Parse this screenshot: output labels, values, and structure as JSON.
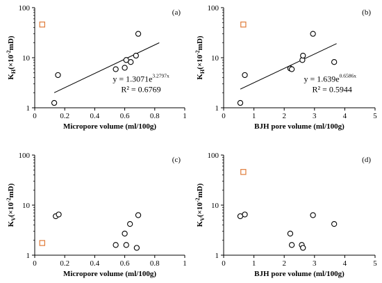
{
  "chart_data": [
    {
      "type": "scatter",
      "panel_label": "(a)",
      "xlabel": "Micropore volume (ml/100g)",
      "ylabel": "Kₕ(×10⁻²mD)",
      "ylabel_base": "K",
      "ylabel_sub": "H",
      "ylabel_rest": "(×10",
      "ylabel_sup": "-2",
      "ylabel_end": "mD)",
      "xlim": [
        0,
        1
      ],
      "xticks": [
        0,
        0.2,
        0.4,
        0.6,
        0.8,
        1
      ],
      "xtick_labels": [
        "0",
        "0.2",
        "0.4",
        "0.6",
        "0.8",
        "1"
      ],
      "ylim": [
        1,
        100
      ],
      "yscale": "log",
      "yticks": [
        1,
        10,
        100
      ],
      "ytick_labels": [
        "1",
        "10",
        "100"
      ],
      "series": [
        {
          "marker": "circle",
          "color": "#000000",
          "points": [
            [
              0.13,
              1.25
            ],
            [
              0.155,
              4.5
            ],
            [
              0.54,
              5.9
            ],
            [
              0.6,
              6.3
            ],
            [
              0.61,
              9.0
            ],
            [
              0.64,
              8.2
            ],
            [
              0.675,
              11.0
            ],
            [
              0.69,
              30.0
            ]
          ]
        },
        {
          "marker": "square",
          "color": "#e07b39",
          "points": [
            [
              0.05,
              46.0
            ]
          ]
        }
      ],
      "fit": {
        "a": 1.3071,
        "b": 3.2797,
        "x_range": [
          0.13,
          0.83
        ]
      },
      "equation": {
        "prefix": "y = 1.3071e",
        "exponent": "3.2797x",
        "r2": "R² = 0.6769"
      }
    },
    {
      "type": "scatter",
      "panel_label": "(b)",
      "xlabel": "BJH pore volume (ml/100g)",
      "ylabel_base": "K",
      "ylabel_sub": "H",
      "ylabel_rest": "(×10",
      "ylabel_sup": "-2",
      "ylabel_end": "mD)",
      "xlim": [
        0,
        5
      ],
      "xticks": [
        0,
        1,
        2,
        3,
        4,
        5
      ],
      "xtick_labels": [
        "0",
        "1",
        "2",
        "3",
        "4",
        "5"
      ],
      "ylim": [
        1,
        100
      ],
      "yscale": "log",
      "yticks": [
        1,
        10,
        100
      ],
      "ytick_labels": [
        "1",
        "10",
        "100"
      ],
      "series": [
        {
          "marker": "circle",
          "color": "#000000",
          "points": [
            [
              0.55,
              1.25
            ],
            [
              0.7,
              4.5
            ],
            [
              2.2,
              6.1
            ],
            [
              2.25,
              5.9
            ],
            [
              2.6,
              9.0
            ],
            [
              2.62,
              11.0
            ],
            [
              2.95,
              30.0
            ],
            [
              3.65,
              8.2
            ]
          ]
        },
        {
          "marker": "square",
          "color": "#e07b39",
          "points": [
            [
              0.65,
              46.0
            ]
          ]
        }
      ],
      "fit": {
        "a": 1.639,
        "b": 0.6586,
        "x_range": [
          0.55,
          3.73
        ]
      },
      "equation": {
        "prefix": "y = 1.639e",
        "exponent": "0.6586x",
        "r2": "R² = 0.5944"
      }
    },
    {
      "type": "scatter",
      "panel_label": "(c)",
      "xlabel": "Micropore volume (ml/100g)",
      "ylabel_base": "K",
      "ylabel_sub": "V",
      "ylabel_rest": "(×10",
      "ylabel_sup": "-2",
      "ylabel_end": "mD)",
      "xlim": [
        0,
        1
      ],
      "xticks": [
        0,
        0.2,
        0.4,
        0.6,
        0.8,
        1
      ],
      "xtick_labels": [
        "0",
        "0.2",
        "0.4",
        "0.6",
        "0.8",
        "1"
      ],
      "ylim": [
        1,
        100
      ],
      "yscale": "log",
      "yticks": [
        1,
        10,
        100
      ],
      "ytick_labels": [
        "1",
        "10",
        "100"
      ],
      "series": [
        {
          "marker": "circle",
          "color": "#000000",
          "points": [
            [
              0.14,
              6.0
            ],
            [
              0.16,
              6.5
            ],
            [
              0.54,
              1.6
            ],
            [
              0.6,
              2.7
            ],
            [
              0.61,
              1.6
            ],
            [
              0.635,
              4.2
            ],
            [
              0.68,
              1.4
            ],
            [
              0.69,
              6.3
            ]
          ]
        },
        {
          "marker": "square",
          "color": "#e07b39",
          "points": [
            [
              0.05,
              1.75
            ]
          ]
        }
      ]
    },
    {
      "type": "scatter",
      "panel_label": "(d)",
      "xlabel": "BJH pore volume (ml/100g)",
      "ylabel_base": "K",
      "ylabel_sub": "V",
      "ylabel_rest": "(×10",
      "ylabel_sup": "-2",
      "ylabel_end": "mD)",
      "xlim": [
        0,
        5
      ],
      "xticks": [
        0,
        1,
        2,
        3,
        4,
        5
      ],
      "xtick_labels": [
        "0",
        "1",
        "2",
        "3",
        "4",
        "5"
      ],
      "ylim": [
        1,
        100
      ],
      "yscale": "log",
      "yticks": [
        1,
        10,
        100
      ],
      "ytick_labels": [
        "1",
        "10",
        "100"
      ],
      "series": [
        {
          "marker": "circle",
          "color": "#000000",
          "points": [
            [
              0.55,
              6.0
            ],
            [
              0.7,
              6.5
            ],
            [
              2.2,
              2.7
            ],
            [
              2.25,
              1.6
            ],
            [
              2.58,
              1.6
            ],
            [
              2.62,
              1.4
            ],
            [
              2.95,
              6.3
            ],
            [
              3.65,
              4.2
            ]
          ]
        },
        {
          "marker": "square",
          "color": "#e07b39",
          "points": [
            [
              0.65,
              46.0
            ]
          ]
        }
      ]
    }
  ]
}
